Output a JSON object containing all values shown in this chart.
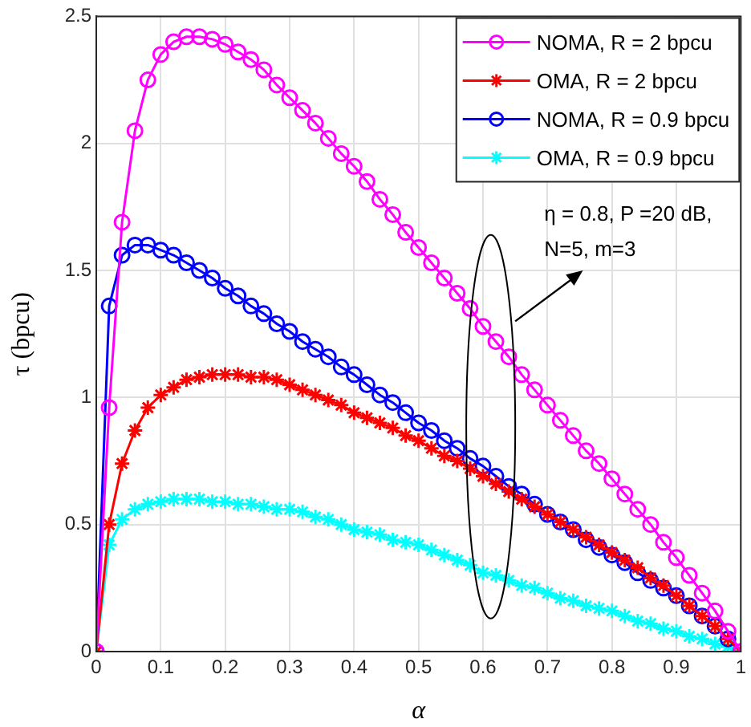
{
  "chart_data": {
    "type": "line",
    "xlabel": "α",
    "ylabel": "τ (bpcu)",
    "x": [
      0,
      0.02,
      0.04,
      0.06,
      0.08,
      0.1,
      0.12,
      0.14,
      0.16,
      0.18,
      0.2,
      0.22,
      0.24,
      0.26,
      0.28,
      0.3,
      0.32,
      0.34,
      0.36,
      0.38,
      0.4,
      0.42,
      0.44,
      0.46,
      0.48,
      0.5,
      0.52,
      0.54,
      0.56,
      0.58,
      0.6,
      0.62,
      0.64,
      0.66,
      0.68,
      0.7,
      0.72,
      0.74,
      0.76,
      0.78,
      0.8,
      0.82,
      0.84,
      0.86,
      0.88,
      0.9,
      0.92,
      0.94,
      0.96,
      0.98,
      1
    ],
    "xlim": [
      0,
      1
    ],
    "xticks": [
      0,
      0.1,
      0.2,
      0.3,
      0.4,
      0.5,
      0.6,
      0.7,
      0.8,
      0.9,
      1
    ],
    "ylim": [
      0,
      2.5
    ],
    "yticks": [
      0,
      0.5,
      1,
      1.5,
      2,
      2.5
    ],
    "grid": true,
    "legend": "top right",
    "line_style": "solid",
    "annotations": [
      "η = 0.8, P =20 dB,\nN=5, m=3"
    ],
    "series": [
      {
        "name": "NOMA, R = 2 bpcu",
        "color": "#ff00ff",
        "marker": "circle",
        "values": [
          0,
          0.96,
          1.69,
          2.05,
          2.25,
          2.35,
          2.4,
          2.42,
          2.42,
          2.41,
          2.39,
          2.36,
          2.33,
          2.29,
          2.23,
          2.18,
          2.13,
          2.08,
          2.02,
          1.96,
          1.91,
          1.85,
          1.78,
          1.72,
          1.65,
          1.59,
          1.53,
          1.47,
          1.41,
          1.35,
          1.28,
          1.22,
          1.16,
          1.09,
          1.03,
          0.97,
          0.91,
          0.85,
          0.79,
          0.74,
          0.68,
          0.62,
          0.56,
          0.5,
          0.43,
          0.37,
          0.3,
          0.23,
          0.16,
          0.08,
          0
        ]
      },
      {
        "name": "OMA, R = 2 bpcu",
        "color": "#ff0000",
        "marker": "cross",
        "values": [
          0,
          0.5,
          0.74,
          0.87,
          0.96,
          1.01,
          1.04,
          1.07,
          1.08,
          1.09,
          1.09,
          1.09,
          1.08,
          1.08,
          1.07,
          1.05,
          1.03,
          1.01,
          0.99,
          0.97,
          0.94,
          0.92,
          0.9,
          0.88,
          0.85,
          0.83,
          0.8,
          0.77,
          0.75,
          0.72,
          0.69,
          0.66,
          0.63,
          0.6,
          0.57,
          0.54,
          0.51,
          0.48,
          0.45,
          0.42,
          0.39,
          0.36,
          0.33,
          0.29,
          0.26,
          0.22,
          0.18,
          0.14,
          0.1,
          0.05,
          0
        ]
      },
      {
        "name": "NOMA, R = 0.9 bpcu",
        "color": "#0000ff",
        "marker": "circle",
        "values": [
          0,
          1.36,
          1.56,
          1.6,
          1.6,
          1.58,
          1.56,
          1.53,
          1.5,
          1.47,
          1.43,
          1.4,
          1.36,
          1.33,
          1.29,
          1.26,
          1.22,
          1.19,
          1.16,
          1.12,
          1.09,
          1.05,
          1.01,
          0.98,
          0.94,
          0.9,
          0.87,
          0.83,
          0.8,
          0.76,
          0.73,
          0.69,
          0.65,
          0.62,
          0.58,
          0.54,
          0.51,
          0.48,
          0.44,
          0.41,
          0.38,
          0.35,
          0.31,
          0.28,
          0.25,
          0.22,
          0.18,
          0.14,
          0.1,
          0.05,
          0
        ]
      },
      {
        "name": "OMA, R = 0.9 bpcu",
        "color": "#00ffff",
        "marker": "cross",
        "values": [
          0,
          0.42,
          0.52,
          0.56,
          0.58,
          0.59,
          0.6,
          0.6,
          0.6,
          0.59,
          0.59,
          0.58,
          0.58,
          0.57,
          0.56,
          0.56,
          0.55,
          0.53,
          0.52,
          0.5,
          0.48,
          0.47,
          0.46,
          0.44,
          0.43,
          0.42,
          0.4,
          0.38,
          0.36,
          0.34,
          0.31,
          0.3,
          0.28,
          0.26,
          0.25,
          0.23,
          0.21,
          0.2,
          0.18,
          0.17,
          0.16,
          0.14,
          0.12,
          0.11,
          0.09,
          0.08,
          0.06,
          0.05,
          0.03,
          0.02,
          0
        ]
      }
    ]
  }
}
